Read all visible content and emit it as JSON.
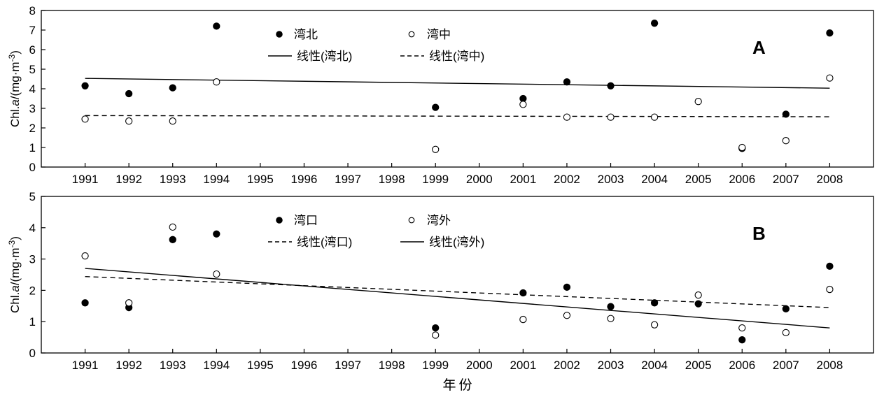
{
  "chart_data": [
    {
      "type": "scatter",
      "panel_label": "A",
      "ylabel_main": "Chl.",
      "ylabel_italic": "a",
      "ylabel_unit": "/(mg·m",
      "ylabel_exp": "-3",
      "ylabel_close": ")",
      "ylim": [
        0,
        8
      ],
      "yticks": [
        "0",
        "1",
        "2",
        "3",
        "4",
        "5",
        "6",
        "7",
        "8"
      ],
      "xlim": [
        1990,
        2009
      ],
      "xticks": [
        "1991",
        "1992",
        "1993",
        "1994",
        "1995",
        "1996",
        "1997",
        "1998",
        "1999",
        "2000",
        "2001",
        "2002",
        "2003",
        "2004",
        "2005",
        "2006",
        "2007",
        "2008"
      ],
      "legend_position": "top-center",
      "series": [
        {
          "name": "湾北",
          "marker": "filled",
          "points": [
            {
              "x": 1991,
              "y": 4.15
            },
            {
              "x": 1992,
              "y": 3.75
            },
            {
              "x": 1993,
              "y": 4.05
            },
            {
              "x": 1994,
              "y": 7.2
            },
            {
              "x": 1999,
              "y": 3.05
            },
            {
              "x": 2001,
              "y": 3.5
            },
            {
              "x": 2002,
              "y": 4.35
            },
            {
              "x": 2003,
              "y": 4.15
            },
            {
              "x": 2004,
              "y": 7.35
            },
            {
              "x": 2006,
              "y": 0.95
            },
            {
              "x": 2007,
              "y": 2.7
            },
            {
              "x": 2008,
              "y": 6.85
            }
          ]
        },
        {
          "name": "湾中",
          "marker": "open",
          "points": [
            {
              "x": 1991,
              "y": 2.45
            },
            {
              "x": 1992,
              "y": 2.35
            },
            {
              "x": 1993,
              "y": 2.35
            },
            {
              "x": 1994,
              "y": 4.35
            },
            {
              "x": 1999,
              "y": 0.9
            },
            {
              "x": 2001,
              "y": 3.2
            },
            {
              "x": 2002,
              "y": 2.55
            },
            {
              "x": 2003,
              "y": 2.55
            },
            {
              "x": 2004,
              "y": 2.55
            },
            {
              "x": 2005,
              "y": 3.35
            },
            {
              "x": 2006,
              "y": 1.0
            },
            {
              "x": 2007,
              "y": 1.35
            },
            {
              "x": 2008,
              "y": 4.55
            }
          ]
        }
      ],
      "trendlines": [
        {
          "name": "线性(湾北)",
          "style": "solid",
          "x": [
            1991,
            2008
          ],
          "y": [
            4.53,
            4.03
          ]
        },
        {
          "name": "线性(湾中)",
          "style": "dashed",
          "x": [
            1991,
            2008
          ],
          "y": [
            2.63,
            2.57
          ]
        }
      ]
    },
    {
      "type": "scatter",
      "panel_label": "B",
      "ylabel_main": "Chl.",
      "ylabel_italic": "a",
      "ylabel_unit": "/(mg·m",
      "ylabel_exp": "-3",
      "ylabel_close": ")",
      "ylim": [
        0,
        5
      ],
      "yticks": [
        "0",
        "1",
        "2",
        "3",
        "4",
        "5"
      ],
      "xlim": [
        1990,
        2009
      ],
      "xticks": [
        "1991",
        "1992",
        "1993",
        "1994",
        "1995",
        "1996",
        "1997",
        "1998",
        "1999",
        "2000",
        "2001",
        "2002",
        "2003",
        "2004",
        "2005",
        "2006",
        "2007",
        "2008"
      ],
      "xlabel": "年份",
      "legend_position": "top-center",
      "series": [
        {
          "name": "湾口",
          "marker": "filled",
          "points": [
            {
              "x": 1991,
              "y": 1.6
            },
            {
              "x": 1992,
              "y": 1.45
            },
            {
              "x": 1993,
              "y": 3.62
            },
            {
              "x": 1994,
              "y": 3.8
            },
            {
              "x": 1999,
              "y": 0.8
            },
            {
              "x": 2001,
              "y": 1.92
            },
            {
              "x": 2002,
              "y": 2.1
            },
            {
              "x": 2003,
              "y": 1.48
            },
            {
              "x": 2004,
              "y": 1.6
            },
            {
              "x": 2005,
              "y": 1.57
            },
            {
              "x": 2006,
              "y": 0.42
            },
            {
              "x": 2007,
              "y": 1.41
            },
            {
              "x": 2008,
              "y": 2.77
            }
          ]
        },
        {
          "name": "湾外",
          "marker": "open",
          "points": [
            {
              "x": 1991,
              "y": 3.1
            },
            {
              "x": 1992,
              "y": 1.6
            },
            {
              "x": 1993,
              "y": 4.02
            },
            {
              "x": 1994,
              "y": 2.52
            },
            {
              "x": 1999,
              "y": 0.57
            },
            {
              "x": 2001,
              "y": 1.07
            },
            {
              "x": 2002,
              "y": 1.2
            },
            {
              "x": 2003,
              "y": 1.1
            },
            {
              "x": 2004,
              "y": 0.9
            },
            {
              "x": 2005,
              "y": 1.85
            },
            {
              "x": 2006,
              "y": 0.8
            },
            {
              "x": 2007,
              "y": 0.65
            },
            {
              "x": 2008,
              "y": 2.03
            }
          ]
        }
      ],
      "trendlines": [
        {
          "name": "线性(湾口)",
          "style": "dashed",
          "x": [
            1991,
            2008
          ],
          "y": [
            2.44,
            1.45
          ]
        },
        {
          "name": "线性(湾外)",
          "style": "solid",
          "x": [
            1991,
            2008
          ],
          "y": [
            2.7,
            0.8
          ]
        }
      ]
    }
  ]
}
